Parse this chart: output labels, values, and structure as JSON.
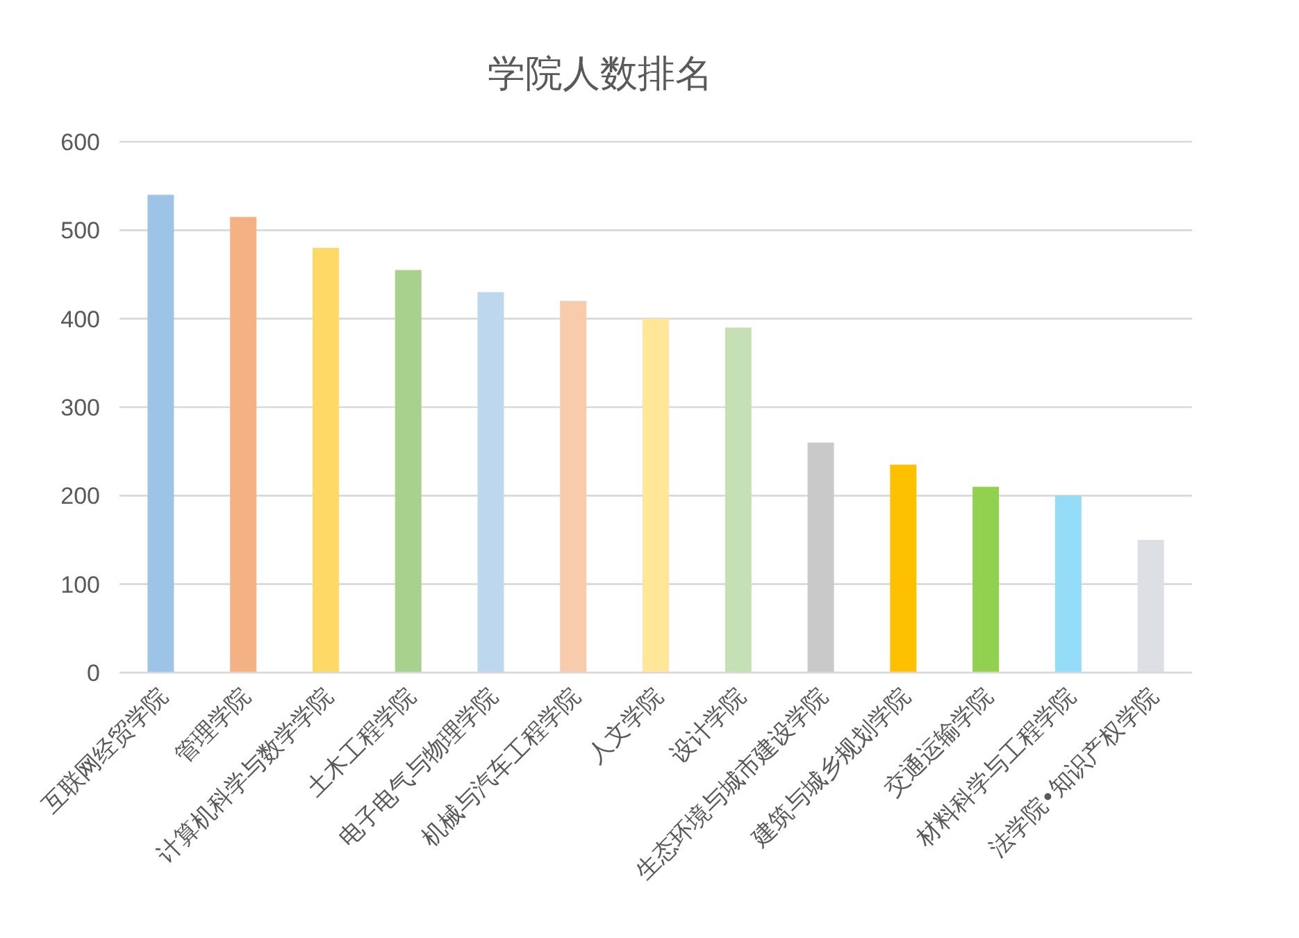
{
  "chart_data": {
    "type": "bar",
    "title": "学院人数排名",
    "categories": [
      "互联网经贸学院",
      "管理学院",
      "计算机科学与数学学院",
      "土木工程学院",
      "电子电气与物理学院",
      "机械与汽车工程学院",
      "人文学院",
      "设计学院",
      "生态环境与城市建设学院",
      "建筑与城乡规划学院",
      "交通运输学院",
      "材料科学与工程学院",
      "法学院•知识产权学院"
    ],
    "values": [
      540,
      515,
      480,
      455,
      430,
      420,
      400,
      390,
      260,
      235,
      210,
      200,
      150
    ],
    "colors": [
      "#9dc3e6",
      "#f4b183",
      "#ffd966",
      "#a9d18e",
      "#bdd7ee",
      "#f8cbad",
      "#ffe699",
      "#c5e0b4",
      "#c9c9c9",
      "#ffc000",
      "#92d050",
      "#95dcf8",
      "#dce0e4"
    ],
    "ylim": [
      0,
      600
    ],
    "yticks": [
      0,
      100,
      200,
      300,
      400,
      500,
      600
    ],
    "grid": "y"
  }
}
